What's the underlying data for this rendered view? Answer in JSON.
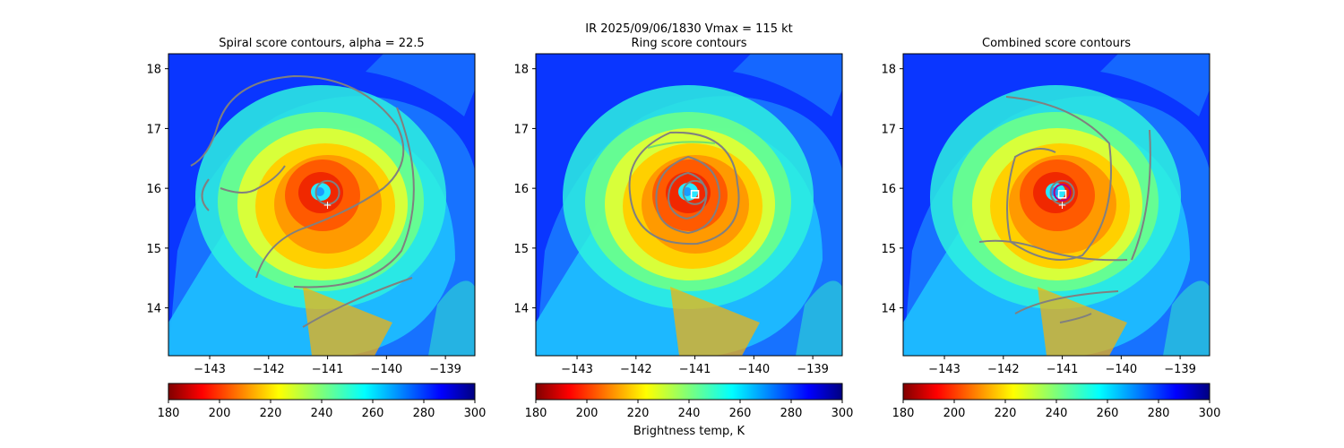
{
  "suptitle": "IR  2025/09/06/1830    Vmax = 115 kt",
  "colorbar_label": "Brightness temp, K",
  "chart_data": [
    {
      "type": "heatmap",
      "title": "Spiral score contours, alpha = 22.5",
      "xlim": [
        -143.7,
        -138.5
      ],
      "ylim": [
        13.2,
        18.25
      ],
      "x_ticks": [
        -143,
        -142,
        -141,
        -140,
        -139
      ],
      "y_ticks": [
        14,
        15,
        16,
        17,
        18
      ],
      "colorbar": {
        "label": "",
        "ticks": [
          180,
          200,
          220,
          240,
          260,
          280,
          300
        ],
        "range": [
          180,
          300
        ],
        "colormap": "jet_r"
      },
      "center_marker": {
        "lon": -141.0,
        "lat": 15.72,
        "symbol": "+"
      },
      "eye": {
        "lon": -141.0,
        "lat": 15.93
      }
    },
    {
      "type": "heatmap",
      "title": "Ring score contours",
      "xlim": [
        -143.7,
        -138.5
      ],
      "ylim": [
        13.2,
        18.25
      ],
      "x_ticks": [
        -143,
        -142,
        -141,
        -140,
        -139
      ],
      "y_ticks": [
        14,
        15,
        16,
        17,
        18
      ],
      "colorbar": {
        "label": "Brightness temp, K",
        "ticks": [
          180,
          200,
          220,
          240,
          260,
          280,
          300
        ],
        "range": [
          180,
          300
        ],
        "colormap": "jet_r"
      },
      "square_marker": {
        "lon": -141.0,
        "lat": 15.9
      },
      "eye": {
        "lon": -141.0,
        "lat": 15.93
      }
    },
    {
      "type": "heatmap",
      "title": "Combined score contours",
      "xlim": [
        -143.7,
        -138.5
      ],
      "ylim": [
        13.2,
        18.25
      ],
      "x_ticks": [
        -143,
        -142,
        -141,
        -140,
        -139
      ],
      "y_ticks": [
        14,
        15,
        16,
        17,
        18
      ],
      "colorbar": {
        "label": "",
        "ticks": [
          180,
          200,
          220,
          240,
          260,
          280,
          300
        ],
        "range": [
          180,
          300
        ],
        "colormap": "jet_r"
      },
      "center_marker": {
        "lon": -141.0,
        "lat": 15.72,
        "symbol": "+"
      },
      "square_marker": {
        "lon": -141.0,
        "lat": 15.9
      },
      "eye": {
        "lon": -141.0,
        "lat": 15.93
      }
    }
  ]
}
